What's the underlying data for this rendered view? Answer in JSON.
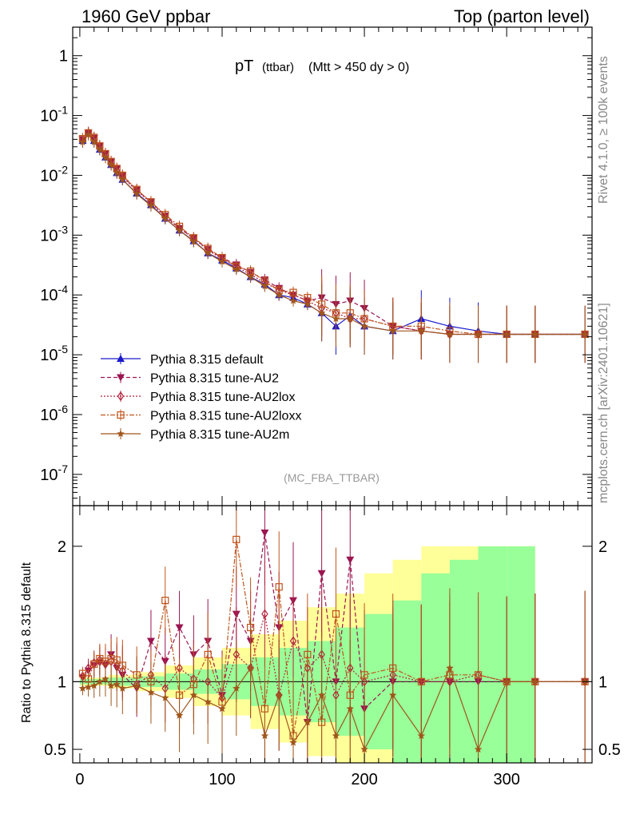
{
  "header": {
    "left": "1960 GeV ppbar",
    "right": "Top (parton level)"
  },
  "side_labels": {
    "rivet": "Rivet 4.1.0, ≥ 100k events",
    "mcplots": "mcplots.cern.ch [arXiv:2401.10621]"
  },
  "analysis_tag": "(MC_FBA_TTBAR)",
  "colors": {
    "default": "#1a1acc",
    "AU2": "#9b1550",
    "AU2lox": "#b2243e",
    "AU2loxx": "#c0541c",
    "AU2m": "#a0561c",
    "band_yellow": "#ffff99",
    "band_green": "#99ff99"
  },
  "chart_data": [
    {
      "type": "line",
      "title": "pT",
      "title_sub": "(ttbar)",
      "title_cut": "(Mtt > 450 dy > 0)",
      "yscale": "log",
      "ylim": [
        3e-08,
        3
      ],
      "xlim": [
        -5,
        360
      ],
      "yticks": [
        "10^-7",
        "10^-6",
        "10^-5",
        "10^-4",
        "10^-3",
        "10^-2",
        "10^-1",
        "1"
      ],
      "legend_position": "bottom-left",
      "x": [
        2,
        6,
        10,
        14,
        18,
        22,
        26,
        30,
        40,
        50,
        60,
        70,
        80,
        90,
        100,
        110,
        120,
        130,
        140,
        150,
        160,
        170,
        180,
        190,
        200,
        220,
        240,
        260,
        280,
        300,
        320,
        355
      ],
      "series": [
        {
          "name": "Pythia 8.315 default",
          "marker": "triangle-up",
          "dash": "solid",
          "values": [
            0.038,
            0.05,
            0.038,
            0.027,
            0.02,
            0.015,
            0.011,
            0.0085,
            0.005,
            0.0032,
            0.0019,
            0.0012,
            0.0008,
            0.0005,
            0.00038,
            0.00028,
            0.0002,
            0.00015,
            0.0001,
            9e-05,
            7e-05,
            5e-05,
            3e-05,
            4.5e-05,
            3e-05,
            2.5e-05,
            4e-05,
            3e-05,
            2.5e-05,
            2.2e-05,
            2.2e-05,
            2.2e-05
          ]
        },
        {
          "name": "Pythia 8.315 tune-AU2",
          "marker": "triangle-down",
          "dash": "dashed",
          "values": [
            0.04,
            0.052,
            0.042,
            0.031,
            0.023,
            0.017,
            0.013,
            0.0098,
            0.0057,
            0.0036,
            0.0021,
            0.0013,
            0.0009,
            0.00058,
            0.00042,
            0.00032,
            0.00024,
            0.00018,
            0.00013,
            0.0001,
            8e-05,
            9e-05,
            7e-05,
            8e-05,
            6e-05,
            3e-05,
            2.5e-05,
            2.2e-05,
            2.2e-05,
            2.2e-05,
            2.2e-05,
            2.2e-05
          ]
        },
        {
          "name": "Pythia 8.315 tune-AU2lox",
          "marker": "diamond-open",
          "dash": "dotted",
          "values": [
            0.039,
            0.051,
            0.041,
            0.03,
            0.022,
            0.016,
            0.012,
            0.0094,
            0.0055,
            0.0035,
            0.002,
            0.0013,
            0.00088,
            0.00056,
            0.0004,
            0.0003,
            0.00022,
            0.00016,
            0.00012,
            0.0001,
            8e-05,
            6e-05,
            5e-05,
            4e-05,
            4e-05,
            3e-05,
            2.5e-05,
            2.2e-05,
            2.2e-05,
            2.2e-05,
            2.2e-05,
            2.2e-05
          ]
        },
        {
          "name": "Pythia 8.315 tune-AU2loxx",
          "marker": "square-open",
          "dash": "dashdot",
          "values": [
            0.041,
            0.051,
            0.043,
            0.031,
            0.023,
            0.017,
            0.013,
            0.01,
            0.0058,
            0.0036,
            0.0022,
            0.0014,
            0.0009,
            0.0006,
            0.00042,
            0.0003,
            0.00025,
            0.00017,
            0.00012,
            0.00011,
            9e-05,
            7e-05,
            5e-05,
            5e-05,
            4e-05,
            3e-05,
            3e-05,
            2.5e-05,
            2.2e-05,
            2.2e-05,
            2.2e-05,
            2.2e-05
          ]
        },
        {
          "name": "Pythia 8.315 tune-AU2m",
          "marker": "star",
          "dash": "solid",
          "values": [
            0.036,
            0.048,
            0.036,
            0.027,
            0.02,
            0.015,
            0.011,
            0.0085,
            0.0049,
            0.0031,
            0.0019,
            0.0012,
            0.00078,
            0.0005,
            0.00036,
            0.00027,
            0.0002,
            0.00014,
            0.0001,
            8e-05,
            7e-05,
            5e-05,
            4e-05,
            4e-05,
            3e-05,
            2.5e-05,
            2.5e-05,
            2.2e-05,
            2.2e-05,
            2.2e-05,
            2.2e-05,
            2.2e-05
          ]
        }
      ]
    },
    {
      "type": "line",
      "ylabel": "Ratio to Pythia 8.315 default",
      "ylim": [
        0.4,
        2.3
      ],
      "xlim": [
        -5,
        360
      ],
      "xticks": [
        0,
        100,
        200,
        300
      ],
      "yticks": [
        0.5,
        1,
        2
      ],
      "reference": 1,
      "bands": {
        "x": [
          0,
          20,
          40,
          60,
          80,
          100,
          120,
          140,
          160,
          180,
          200,
          220,
          240,
          260,
          280,
          300,
          320
        ],
        "yellow_half_width": [
          0.03,
          0.05,
          0.07,
          0.12,
          0.18,
          0.25,
          0.35,
          0.45,
          0.55,
          0.65,
          0.8,
          0.9,
          1.0,
          1.0,
          1.0,
          1.0,
          1.0
        ],
        "green_half_width": [
          0.02,
          0.03,
          0.04,
          0.06,
          0.09,
          0.13,
          0.18,
          0.25,
          0.3,
          0.4,
          0.5,
          0.6,
          0.8,
          0.9,
          1.0,
          1.0,
          1.0
        ]
      },
      "series": [
        {
          "name": "tune-AU2",
          "values": [
            1.03,
            1.08,
            1.12,
            1.14,
            1.12,
            1.2,
            1.1,
            1.05,
            0.95,
            1.3,
            1.15,
            1.4,
            1.2,
            1.3,
            0.9,
            1.5,
            1.3,
            2.1,
            1.4,
            1.6,
            0.7,
            1.8,
            1.0,
            1.9,
            0.8,
            1.0,
            1.0,
            1.0,
            1.0,
            1.0,
            1.0,
            1.0
          ]
        },
        {
          "name": "tune-AU2lox",
          "values": [
            1.04,
            1.1,
            1.14,
            1.16,
            1.13,
            1.15,
            1.12,
            1.08,
            0.98,
            1.05,
            0.95,
            1.1,
            1.02,
            1.0,
            0.88,
            1.2,
            1.1,
            1.5,
            0.9,
            1.3,
            1.1,
            1.2,
            0.9,
            1.1,
            1.0,
            1.05,
            1.0,
            1.0,
            1.05,
            1.0,
            1.0,
            1.0
          ]
        },
        {
          "name": "tune-AU2loxx",
          "values": [
            1.06,
            1.02,
            1.13,
            1.17,
            1.15,
            1.17,
            1.16,
            1.12,
            1.05,
            1.0,
            1.6,
            0.9,
            0.98,
            1.2,
            0.85,
            2.05,
            1.4,
            0.8,
            1.7,
            0.6,
            1.2,
            0.7,
            1.5,
            0.9,
            1.05,
            1.1,
            1.0,
            1.05,
            1.05,
            1.0,
            1.0,
            1.0
          ]
        },
        {
          "name": "tune-AU2m",
          "values": [
            0.95,
            0.96,
            0.97,
            1.0,
            1.02,
            0.97,
            0.98,
            0.95,
            0.97,
            0.92,
            0.88,
            0.75,
            0.9,
            0.85,
            0.8,
            0.95,
            1.1,
            0.6,
            0.9,
            0.55,
            0.7,
            0.9,
            0.6,
            0.8,
            0.5,
            0.9,
            0.6,
            1.1,
            0.5,
            1.0,
            1.0,
            1.0
          ]
        }
      ]
    }
  ]
}
